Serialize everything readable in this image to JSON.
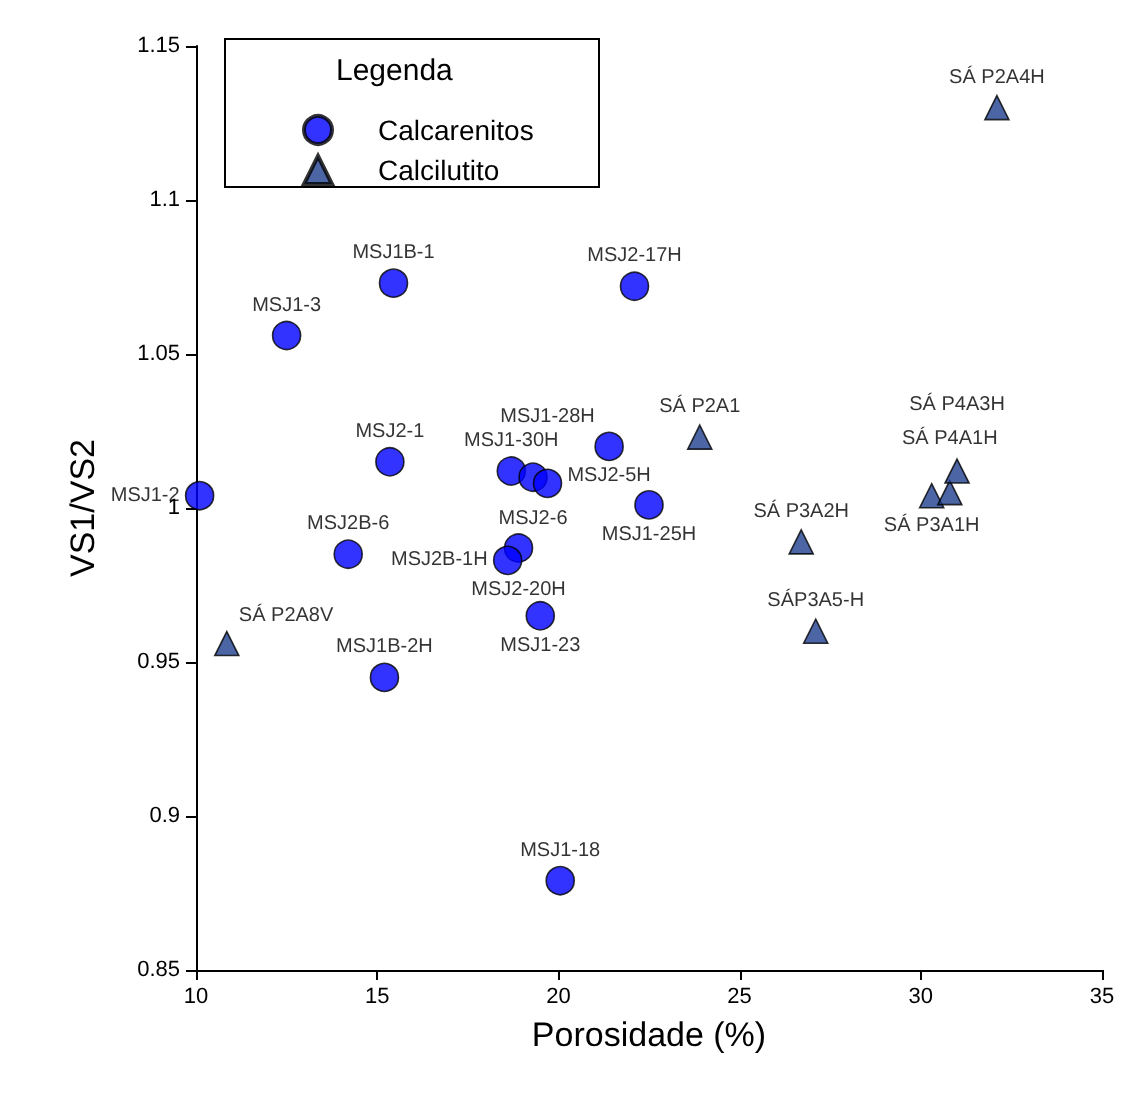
{
  "chart_data": {
    "type": "scatter",
    "xlabel": "Porosidade (%)",
    "ylabel": "VS1/VS2",
    "legend_title": "Legenda",
    "legend": "top left",
    "grid": false,
    "xlim": [
      10,
      35
    ],
    "xticks": [
      10,
      15,
      20,
      25,
      30,
      35
    ],
    "ylim": [
      0.85,
      1.15
    ],
    "yticks": [
      0.85,
      0.9,
      0.95,
      1,
      1.05,
      1.1,
      1.15
    ],
    "series": [
      {
        "name": "Calcarenitos",
        "color": "#0000ff",
        "marker": "circle",
        "x": [
          15.45,
          22.1,
          12.5,
          15.35,
          10.1,
          14.2,
          15.2,
          20.05,
          18.7,
          19.3,
          19.7,
          21.4,
          22.5,
          18.9,
          18.6,
          19.5
        ],
        "values": [
          1.073,
          1.072,
          1.056,
          1.015,
          1.004,
          0.985,
          0.945,
          0.879,
          1.012,
          1.01,
          1.008,
          1.02,
          1.001,
          0.987,
          0.983,
          0.965
        ]
      },
      {
        "name": "Calcilutito",
        "color": "#1f3f8f",
        "marker": "triangle",
        "x": [
          32.1,
          23.9,
          26.7,
          27.1,
          10.85,
          30.3,
          30.8,
          31.0
        ],
        "values": [
          1.13,
          1.023,
          0.989,
          0.96,
          0.956,
          1.004,
          1.005,
          1.012
        ]
      }
    ],
    "annotations": [
      {
        "text": "MSJ1B-1",
        "x": 15.45,
        "y": 1.073
      },
      {
        "text": "MSJ2-17H",
        "x": 22.1,
        "y": 1.072
      },
      {
        "text": "MSJ1-3",
        "x": 12.5,
        "y": 1.056
      },
      {
        "text": "MSJ2-1",
        "x": 15.35,
        "y": 1.015
      },
      {
        "text": "MSJ1-2",
        "x": 10.1,
        "y": 1.004
      },
      {
        "text": "MSJ2B-6",
        "x": 14.2,
        "y": 0.985
      },
      {
        "text": "MSJ1B-2H",
        "x": 15.2,
        "y": 0.945
      },
      {
        "text": "MSJ1-18",
        "x": 20.05,
        "y": 0.879
      },
      {
        "text": "MSJ1-30H",
        "x": 18.7,
        "y": 1.012
      },
      {
        "text": "MSJ2-6",
        "x": 19.3,
        "y": 1.01
      },
      {
        "text": "MSJ1-28H",
        "x": 19.7,
        "y": 1.008
      },
      {
        "text": "MSJ2-5H",
        "x": 21.4,
        "y": 1.02
      },
      {
        "text": "MSJ1-25H",
        "x": 22.5,
        "y": 1.001
      },
      {
        "text": "MSJ2-20H",
        "x": 18.9,
        "y": 0.987
      },
      {
        "text": "MSJ2B-1H",
        "x": 18.6,
        "y": 0.983
      },
      {
        "text": "MSJ1-23",
        "x": 19.5,
        "y": 0.965
      },
      {
        "text": "SÁ P2A4H",
        "x": 32.1,
        "y": 1.13
      },
      {
        "text": "SÁ P2A1",
        "x": 23.9,
        "y": 1.023
      },
      {
        "text": "SÁ P3A2H",
        "x": 26.7,
        "y": 0.989
      },
      {
        "text": "SÁP3A5-H",
        "x": 27.1,
        "y": 0.96
      },
      {
        "text": "SÁ P2A8V",
        "x": 10.85,
        "y": 0.956
      },
      {
        "text": "SÁ P3A1H",
        "x": 30.3,
        "y": 1.004
      },
      {
        "text": "SÁ P4A1H",
        "x": 30.8,
        "y": 1.005
      },
      {
        "text": "SÁ P4A3H",
        "x": 31.0,
        "y": 1.012
      }
    ]
  }
}
